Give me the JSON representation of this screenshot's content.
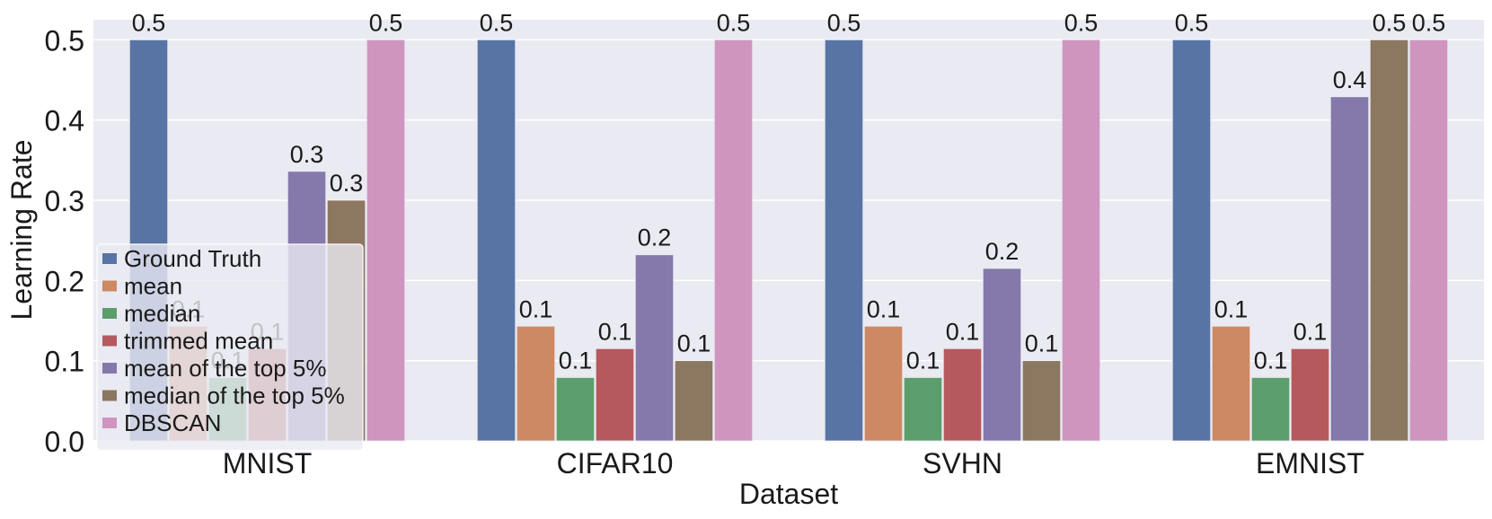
{
  "chart_data": {
    "type": "bar",
    "title": "",
    "xlabel": "Dataset",
    "ylabel": "Learning Rate",
    "ylim": [
      0,
      0.525
    ],
    "yticks": [
      0.0,
      0.1,
      0.2,
      0.3,
      0.4,
      0.5
    ],
    "ytick_labels": [
      "0.0",
      "0.1",
      "0.2",
      "0.3",
      "0.4",
      "0.5"
    ],
    "grid": true,
    "legend_position": "bottom-left",
    "categories": [
      "MNIST",
      "CIFAR10",
      "SVHN",
      "EMNIST"
    ],
    "series": [
      {
        "name": "Ground Truth",
        "color": "#5874a5",
        "values": [
          0.5,
          0.5,
          0.5,
          0.5
        ],
        "labels": [
          "0.5",
          "0.5",
          "0.5",
          "0.5"
        ]
      },
      {
        "name": "mean",
        "color": "#cc8963",
        "values": [
          0.143,
          0.143,
          0.143,
          0.143
        ],
        "labels": [
          "0.1",
          "0.1",
          "0.1",
          "0.1"
        ]
      },
      {
        "name": "median",
        "color": "#5b9e6c",
        "values": [
          0.079,
          0.079,
          0.079,
          0.079
        ],
        "labels": [
          "0.1",
          "0.1",
          "0.1",
          "0.1"
        ]
      },
      {
        "name": "trimmed mean",
        "color": "#b5595c",
        "values": [
          0.115,
          0.115,
          0.115,
          0.115
        ],
        "labels": [
          "0.1",
          "0.1",
          "0.1",
          "0.1"
        ]
      },
      {
        "name": "mean of the top 5%",
        "color": "#8579ab",
        "values": [
          0.336,
          0.232,
          0.215,
          0.429
        ],
        "labels": [
          "0.3",
          "0.2",
          "0.2",
          "0.4"
        ]
      },
      {
        "name": "median of the top 5%",
        "color": "#8c7761",
        "values": [
          0.3,
          0.1,
          0.1,
          0.5
        ],
        "labels": [
          "0.3",
          "0.1",
          "0.1",
          "0.5"
        ]
      },
      {
        "name": "DBSCAN",
        "color": "#cf95bf",
        "values": [
          0.5,
          0.5,
          0.5,
          0.5
        ],
        "labels": [
          "0.5",
          "0.5",
          "0.5",
          "0.5"
        ]
      }
    ],
    "background_color": "#eaeaf2",
    "grid_color": "#ffffff"
  }
}
